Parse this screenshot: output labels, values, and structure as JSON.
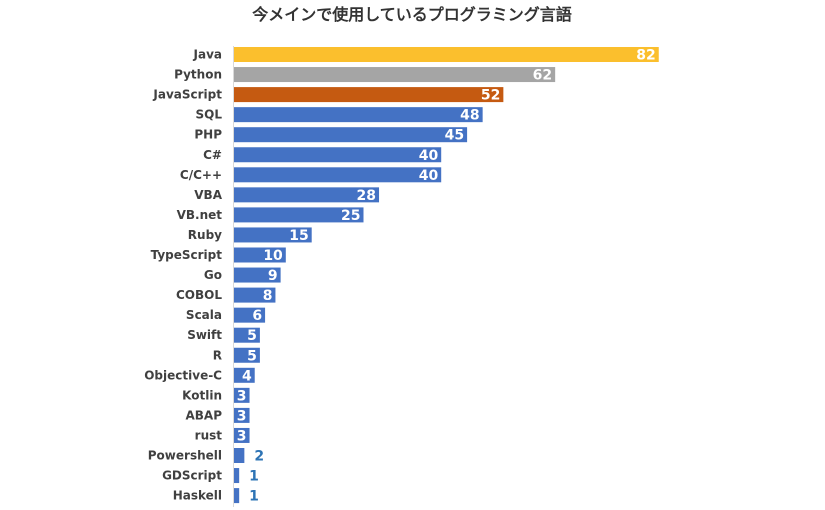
{
  "chart_data": {
    "type": "bar",
    "orientation": "horizontal",
    "title": "今メインで使用しているプログラミング言語",
    "xlabel": "",
    "ylabel": "",
    "xlim": [
      0,
      100
    ],
    "grid": false,
    "legend": "none",
    "categories": [
      "Java",
      "Python",
      "JavaScript",
      "SQL",
      "PHP",
      "C#",
      "C/C++",
      "VBA",
      "VB.net",
      "Ruby",
      "TypeScript",
      "Go",
      "COBOL",
      "Scala",
      "Swift",
      "R",
      "Objective-C",
      "Kotlin",
      "ABAP",
      "rust",
      "Powershell",
      "GDScript",
      "Haskell"
    ],
    "values": [
      82,
      62,
      52,
      48,
      45,
      40,
      40,
      28,
      25,
      15,
      10,
      9,
      8,
      6,
      5,
      5,
      4,
      3,
      3,
      3,
      2,
      1,
      1
    ],
    "colors": [
      "#fbbf2d",
      "#a5a5a5",
      "#c55a11",
      "#4472c4",
      "#4472c4",
      "#4472c4",
      "#4472c4",
      "#4472c4",
      "#4472c4",
      "#4472c4",
      "#4472c4",
      "#4472c4",
      "#4472c4",
      "#4472c4",
      "#4472c4",
      "#4472c4",
      "#4472c4",
      "#4472c4",
      "#4472c4",
      "#4472c4",
      "#4472c4",
      "#4472c4",
      "#4472c4"
    ],
    "label_colors": {
      "inside": "#ffffff",
      "outside": "#2e74b5"
    }
  }
}
